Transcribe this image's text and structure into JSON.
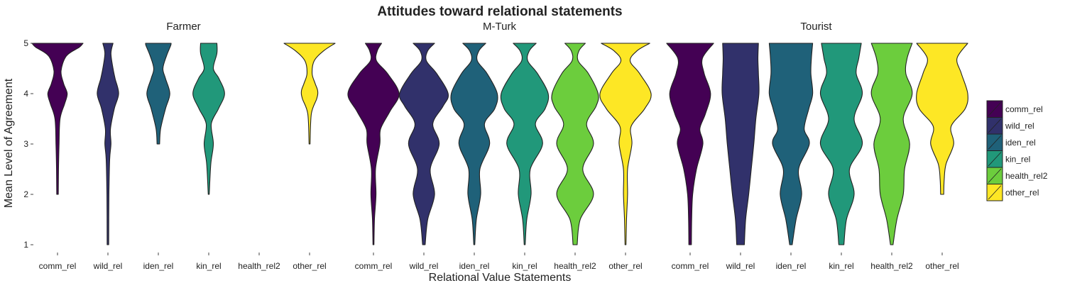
{
  "chart_data": {
    "type": "violin",
    "title": "Attitudes toward relational statements",
    "xlabel": "Relational Value Statements",
    "ylabel": "Mean Level of Agreement",
    "ylim": [
      1,
      5
    ],
    "y_ticks": [
      1,
      2,
      3,
      4,
      5
    ],
    "categories": [
      "comm_rel",
      "wild_rel",
      "iden_rel",
      "kin_rel",
      "health_rel2",
      "other_rel"
    ],
    "panels": [
      {
        "name": "Farmer",
        "violins": [
          {
            "category": "comm_rel",
            "min": 2,
            "max": 5,
            "density": [
              {
                "y": 2,
                "w": 0.03
              },
              {
                "y": 2.5,
                "w": 0.04
              },
              {
                "y": 3,
                "w": 0.06
              },
              {
                "y": 3.5,
                "w": 0.1
              },
              {
                "y": 3.8,
                "w": 0.28
              },
              {
                "y": 4.0,
                "w": 0.38
              },
              {
                "y": 4.2,
                "w": 0.24
              },
              {
                "y": 4.45,
                "w": 0.14
              },
              {
                "y": 4.75,
                "w": 0.35
              },
              {
                "y": 4.92,
                "w": 0.85
              },
              {
                "y": 5,
                "w": 1.0
              }
            ]
          },
          {
            "category": "wild_rel",
            "min": 1,
            "max": 5,
            "density": [
              {
                "y": 1,
                "w": 0.03
              },
              {
                "y": 2,
                "w": 0.04
              },
              {
                "y": 2.7,
                "w": 0.07
              },
              {
                "y": 3,
                "w": 0.12
              },
              {
                "y": 3.3,
                "w": 0.1
              },
              {
                "y": 3.7,
                "w": 0.25
              },
              {
                "y": 4.0,
                "w": 0.42
              },
              {
                "y": 4.3,
                "w": 0.28
              },
              {
                "y": 4.5,
                "w": 0.2
              },
              {
                "y": 4.8,
                "w": 0.12
              },
              {
                "y": 5,
                "w": 0.2
              }
            ]
          },
          {
            "category": "iden_rel",
            "min": 3,
            "max": 5,
            "density": [
              {
                "y": 3,
                "w": 0.05
              },
              {
                "y": 3.3,
                "w": 0.09
              },
              {
                "y": 3.7,
                "w": 0.28
              },
              {
                "y": 4.0,
                "w": 0.45
              },
              {
                "y": 4.3,
                "w": 0.28
              },
              {
                "y": 4.5,
                "w": 0.18
              },
              {
                "y": 4.75,
                "w": 0.32
              },
              {
                "y": 4.95,
                "w": 0.48
              },
              {
                "y": 5,
                "w": 0.5
              }
            ]
          },
          {
            "category": "kin_rel",
            "min": 2,
            "max": 5,
            "density": [
              {
                "y": 2,
                "w": 0.02
              },
              {
                "y": 2.6,
                "w": 0.08
              },
              {
                "y": 3.0,
                "w": 0.18
              },
              {
                "y": 3.4,
                "w": 0.1
              },
              {
                "y": 3.7,
                "w": 0.38
              },
              {
                "y": 4.0,
                "w": 0.62
              },
              {
                "y": 4.3,
                "w": 0.4
              },
              {
                "y": 4.5,
                "w": 0.18
              },
              {
                "y": 4.8,
                "w": 0.32
              },
              {
                "y": 5,
                "w": 0.32
              }
            ]
          },
          {
            "category": "health_rel2",
            "min": null,
            "max": null,
            "density": []
          },
          {
            "category": "other_rel",
            "min": 3,
            "max": 5,
            "density": [
              {
                "y": 3,
                "w": 0.02
              },
              {
                "y": 3.6,
                "w": 0.07
              },
              {
                "y": 3.9,
                "w": 0.28
              },
              {
                "y": 4.05,
                "w": 0.32
              },
              {
                "y": 4.2,
                "w": 0.22
              },
              {
                "y": 4.4,
                "w": 0.1
              },
              {
                "y": 4.65,
                "w": 0.18
              },
              {
                "y": 4.85,
                "w": 0.55
              },
              {
                "y": 5,
                "w": 1.0
              }
            ]
          }
        ]
      },
      {
        "name": "M-Turk",
        "violins": [
          {
            "category": "comm_rel",
            "min": 1,
            "max": 5,
            "density": [
              {
                "y": 1,
                "w": 0.02
              },
              {
                "y": 1.5,
                "w": 0.04
              },
              {
                "y": 2,
                "w": 0.1
              },
              {
                "y": 2.5,
                "w": 0.08
              },
              {
                "y": 3.0,
                "w": 0.25
              },
              {
                "y": 3.3,
                "w": 0.28
              },
              {
                "y": 3.65,
                "w": 0.65
              },
              {
                "y": 4.0,
                "w": 1.0
              },
              {
                "y": 4.4,
                "w": 0.55
              },
              {
                "y": 4.65,
                "w": 0.12
              },
              {
                "y": 4.85,
                "w": 0.15
              },
              {
                "y": 5,
                "w": 0.32
              }
            ]
          },
          {
            "category": "wild_rel",
            "min": 1,
            "max": 5,
            "density": [
              {
                "y": 1,
                "w": 0.05
              },
              {
                "y": 1.5,
                "w": 0.15
              },
              {
                "y": 2,
                "w": 0.42
              },
              {
                "y": 2.5,
                "w": 0.25
              },
              {
                "y": 3.0,
                "w": 0.6
              },
              {
                "y": 3.4,
                "w": 0.35
              },
              {
                "y": 3.75,
                "w": 0.75
              },
              {
                "y": 4.0,
                "w": 0.95
              },
              {
                "y": 4.4,
                "w": 0.5
              },
              {
                "y": 4.65,
                "w": 0.1
              },
              {
                "y": 4.85,
                "w": 0.15
              },
              {
                "y": 5,
                "w": 0.42
              }
            ]
          },
          {
            "category": "iden_rel",
            "min": 1,
            "max": 5,
            "density": [
              {
                "y": 1,
                "w": 0.02
              },
              {
                "y": 1.5,
                "w": 0.08
              },
              {
                "y": 2,
                "w": 0.25
              },
              {
                "y": 2.5,
                "w": 0.22
              },
              {
                "y": 3.0,
                "w": 0.6
              },
              {
                "y": 3.4,
                "w": 0.4
              },
              {
                "y": 3.7,
                "w": 0.8
              },
              {
                "y": 4.0,
                "w": 0.9
              },
              {
                "y": 4.4,
                "w": 0.5
              },
              {
                "y": 4.65,
                "w": 0.12
              },
              {
                "y": 4.85,
                "w": 0.18
              },
              {
                "y": 5,
                "w": 0.45
              }
            ]
          },
          {
            "category": "kin_rel",
            "min": 1,
            "max": 5,
            "density": [
              {
                "y": 1,
                "w": 0.02
              },
              {
                "y": 1.5,
                "w": 0.08
              },
              {
                "y": 2,
                "w": 0.25
              },
              {
                "y": 2.5,
                "w": 0.22
              },
              {
                "y": 3.0,
                "w": 0.7
              },
              {
                "y": 3.4,
                "w": 0.42
              },
              {
                "y": 3.7,
                "w": 0.8
              },
              {
                "y": 4.0,
                "w": 0.92
              },
              {
                "y": 4.4,
                "w": 0.5
              },
              {
                "y": 4.65,
                "w": 0.12
              },
              {
                "y": 4.85,
                "w": 0.18
              },
              {
                "y": 5,
                "w": 0.45
              }
            ]
          },
          {
            "category": "health_rel2",
            "min": 1,
            "max": 5,
            "density": [
              {
                "y": 1,
                "w": 0.08
              },
              {
                "y": 1.5,
                "w": 0.2
              },
              {
                "y": 2,
                "w": 0.72
              },
              {
                "y": 2.5,
                "w": 0.3
              },
              {
                "y": 3.0,
                "w": 0.72
              },
              {
                "y": 3.4,
                "w": 0.45
              },
              {
                "y": 3.75,
                "w": 0.82
              },
              {
                "y": 4.0,
                "w": 0.9
              },
              {
                "y": 4.4,
                "w": 0.52
              },
              {
                "y": 4.65,
                "w": 0.12
              },
              {
                "y": 4.85,
                "w": 0.15
              },
              {
                "y": 5,
                "w": 0.4
              }
            ]
          },
          {
            "category": "other_rel",
            "min": 1,
            "max": 5,
            "density": [
              {
                "y": 1,
                "w": 0.02
              },
              {
                "y": 1.5,
                "w": 0.04
              },
              {
                "y": 2,
                "w": 0.08
              },
              {
                "y": 2.5,
                "w": 0.08
              },
              {
                "y": 3.0,
                "w": 0.25
              },
              {
                "y": 3.35,
                "w": 0.22
              },
              {
                "y": 3.7,
                "w": 0.75
              },
              {
                "y": 4.0,
                "w": 1.0
              },
              {
                "y": 4.4,
                "w": 0.55
              },
              {
                "y": 4.65,
                "w": 0.18
              },
              {
                "y": 4.85,
                "w": 0.45
              },
              {
                "y": 5,
                "w": 0.95
              }
            ]
          }
        ]
      },
      {
        "name": "Tourist",
        "violins": [
          {
            "category": "comm_rel",
            "min": 1,
            "max": 5,
            "density": [
              {
                "y": 1,
                "w": 0.05
              },
              {
                "y": 1.5,
                "w": 0.06
              },
              {
                "y": 2,
                "w": 0.1
              },
              {
                "y": 2.5,
                "w": 0.25
              },
              {
                "y": 3.0,
                "w": 0.5
              },
              {
                "y": 3.3,
                "w": 0.38
              },
              {
                "y": 3.6,
                "w": 0.6
              },
              {
                "y": 4.0,
                "w": 0.8
              },
              {
                "y": 4.4,
                "w": 0.55
              },
              {
                "y": 4.7,
                "w": 0.48
              },
              {
                "y": 5,
                "w": 0.92
              }
            ]
          },
          {
            "category": "wild_rel",
            "min": 1,
            "max": 5,
            "density": [
              {
                "y": 1,
                "w": 0.15
              },
              {
                "y": 1.5,
                "w": 0.2
              },
              {
                "y": 2,
                "w": 0.32
              },
              {
                "y": 2.5,
                "w": 0.42
              },
              {
                "y": 3.0,
                "w": 0.52
              },
              {
                "y": 3.5,
                "w": 0.6
              },
              {
                "y": 4.0,
                "w": 0.72
              },
              {
                "y": 4.4,
                "w": 0.7
              },
              {
                "y": 4.7,
                "w": 0.68
              },
              {
                "y": 5,
                "w": 0.7
              }
            ]
          },
          {
            "category": "iden_rel",
            "min": 1,
            "max": 5,
            "density": [
              {
                "y": 1,
                "w": 0.05
              },
              {
                "y": 1.5,
                "w": 0.2
              },
              {
                "y": 2,
                "w": 0.42
              },
              {
                "y": 2.5,
                "w": 0.3
              },
              {
                "y": 3.0,
                "w": 0.72
              },
              {
                "y": 3.3,
                "w": 0.52
              },
              {
                "y": 3.7,
                "w": 0.7
              },
              {
                "y": 4.0,
                "w": 0.85
              },
              {
                "y": 4.4,
                "w": 0.78
              },
              {
                "y": 4.7,
                "w": 0.8
              },
              {
                "y": 5,
                "w": 0.85
              }
            ]
          },
          {
            "category": "kin_rel",
            "min": 1,
            "max": 5,
            "density": [
              {
                "y": 1,
                "w": 0.1
              },
              {
                "y": 1.5,
                "w": 0.2
              },
              {
                "y": 2,
                "w": 0.5
              },
              {
                "y": 2.5,
                "w": 0.32
              },
              {
                "y": 3.0,
                "w": 0.82
              },
              {
                "y": 3.5,
                "w": 0.5
              },
              {
                "y": 4.0,
                "w": 0.82
              },
              {
                "y": 4.4,
                "w": 0.58
              },
              {
                "y": 4.7,
                "w": 0.68
              },
              {
                "y": 5,
                "w": 0.78
              }
            ]
          },
          {
            "category": "health_rel2",
            "min": 1,
            "max": 5,
            "density": [
              {
                "y": 1,
                "w": 0.05
              },
              {
                "y": 1.5,
                "w": 0.2
              },
              {
                "y": 2,
                "w": 0.45
              },
              {
                "y": 2.5,
                "w": 0.5
              },
              {
                "y": 3.0,
                "w": 0.7
              },
              {
                "y": 3.5,
                "w": 0.45
              },
              {
                "y": 4.0,
                "w": 0.8
              },
              {
                "y": 4.4,
                "w": 0.55
              },
              {
                "y": 4.7,
                "w": 0.6
              },
              {
                "y": 5,
                "w": 0.8
              }
            ]
          },
          {
            "category": "other_rel",
            "min": 2,
            "max": 5,
            "density": [
              {
                "y": 2,
                "w": 0.06
              },
              {
                "y": 2.3,
                "w": 0.08
              },
              {
                "y": 2.6,
                "w": 0.15
              },
              {
                "y": 3.0,
                "w": 0.45
              },
              {
                "y": 3.35,
                "w": 0.35
              },
              {
                "y": 3.7,
                "w": 0.9
              },
              {
                "y": 4.0,
                "w": 1.0
              },
              {
                "y": 4.4,
                "w": 0.75
              },
              {
                "y": 4.7,
                "w": 0.58
              },
              {
                "y": 5,
                "w": 1.0
              }
            ]
          }
        ]
      }
    ],
    "legend": {
      "position": "right",
      "entries": [
        {
          "name": "comm_rel",
          "color": "#440154"
        },
        {
          "name": "wild_rel",
          "color": "#31316b"
        },
        {
          "name": "iden_rel",
          "color": "#1f6179"
        },
        {
          "name": "kin_rel",
          "color": "#21987a"
        },
        {
          "name": "health_rel2",
          "color": "#6ccd3d"
        },
        {
          "name": "other_rel",
          "color": "#fde725"
        }
      ]
    },
    "grid": false
  }
}
